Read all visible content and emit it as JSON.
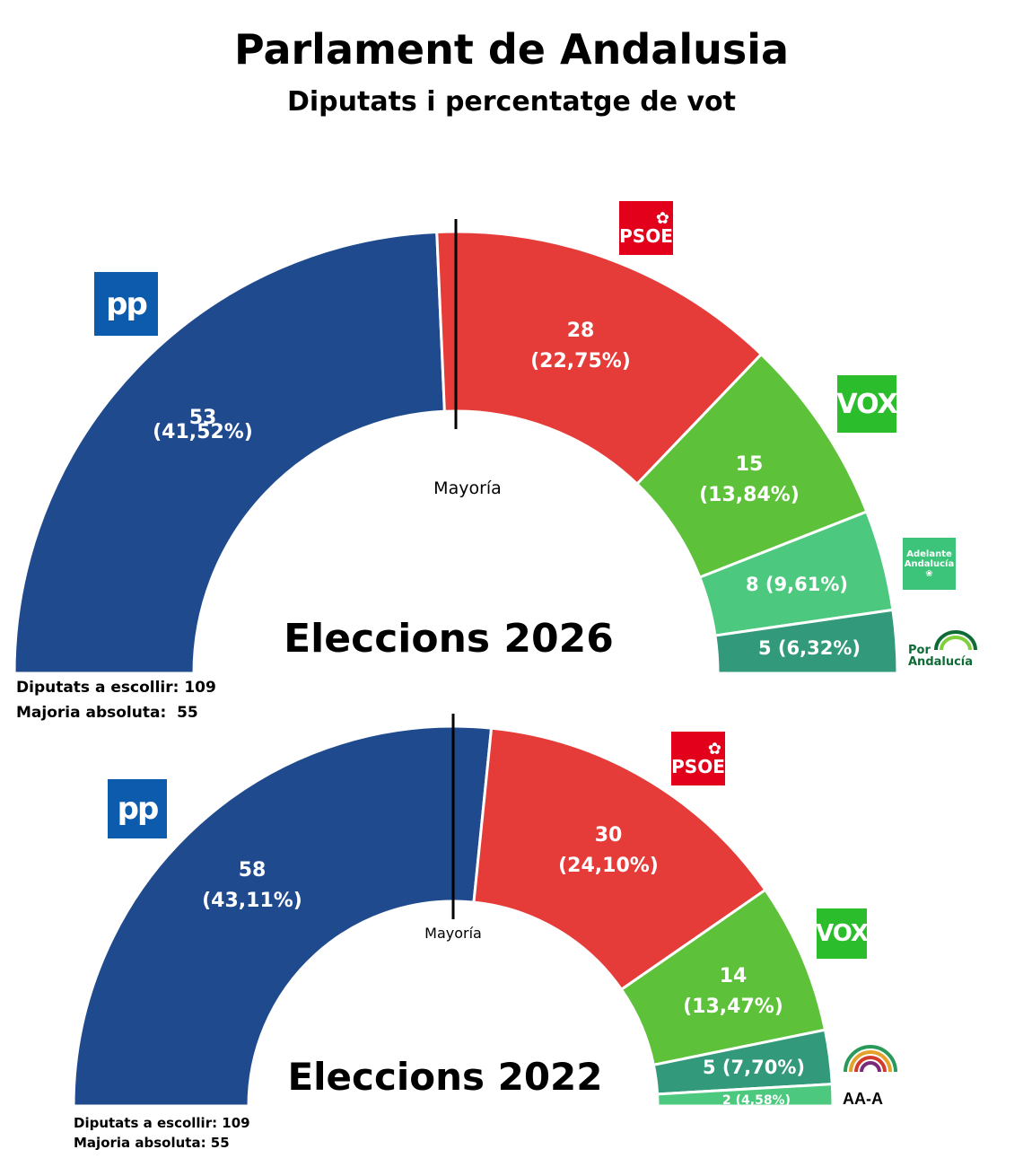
{
  "title": "Parlament de Andalusia",
  "subtitle": "Diputats i percentatge de vot",
  "colors": {
    "pp": "#1f4a8e",
    "psoe": "#e53c3a",
    "vox": "#5ec13a",
    "adelante": "#4cc97e",
    "por_andalucia": "#32997a",
    "aa": "#4cc97e"
  },
  "chart_data": [
    {
      "type": "pie",
      "title": "Eleccions 2026",
      "subtype": "semicircle-parliament",
      "total_seats": 109,
      "majority": 55,
      "majority_label": "Mayoría",
      "series": [
        {
          "name": "PP",
          "seats": 53,
          "percent": "41,52%",
          "label_line1": "53",
          "label_line2": "(41,52%)"
        },
        {
          "name": "PSOE",
          "seats": 28,
          "percent": "22,75%",
          "label_line1": "28",
          "label_line2": "(22,75%)"
        },
        {
          "name": "VOX",
          "seats": 15,
          "percent": "13,84%",
          "label_line1": "15",
          "label_line2": "(13,84%)"
        },
        {
          "name": "Adelante Andalucía",
          "seats": 8,
          "percent": "9,61%",
          "label_line1": "8 (9,61%)",
          "label_line2": ""
        },
        {
          "name": "Por Andalucía",
          "seats": 5,
          "percent": "6,32%",
          "label_line1": "5 (6,32%)",
          "label_line2": ""
        }
      ],
      "notes": [
        "Diputats a escollir: 109",
        "Majoria absoluta:  55"
      ]
    },
    {
      "type": "pie",
      "title": "Eleccions 2022",
      "subtype": "semicircle-parliament",
      "total_seats": 109,
      "majority": 55,
      "majority_label": "Mayoría",
      "series": [
        {
          "name": "PP",
          "seats": 58,
          "percent": "43,11%",
          "label_line1": "58",
          "label_line2": "(43,11%)"
        },
        {
          "name": "PSOE",
          "seats": 30,
          "percent": "24,10%",
          "label_line1": "30",
          "label_line2": "(24,10%)"
        },
        {
          "name": "VOX",
          "seats": 14,
          "percent": "13,47%",
          "label_line1": "14",
          "label_line2": "(13,47%)"
        },
        {
          "name": "Por Andalucía",
          "seats": 5,
          "percent": "7,70%",
          "label_line1": "5 (7,70%)",
          "label_line2": ""
        },
        {
          "name": "AA-A",
          "seats": 2,
          "percent": "4,58%",
          "label_line1": "2 (4,58%)",
          "label_line2": ""
        }
      ],
      "notes": [
        "Diputats a escollir: 109",
        "Majoria absoluta: 55"
      ]
    }
  ],
  "logos": {
    "pp": "pp",
    "psoe": "PSOE",
    "vox": "VOX",
    "adelante_line1": "Adelante",
    "adelante_line2": "Andalucía",
    "por_line1": "Por",
    "por_line2": "Andalucía",
    "aa": "AA-A"
  }
}
